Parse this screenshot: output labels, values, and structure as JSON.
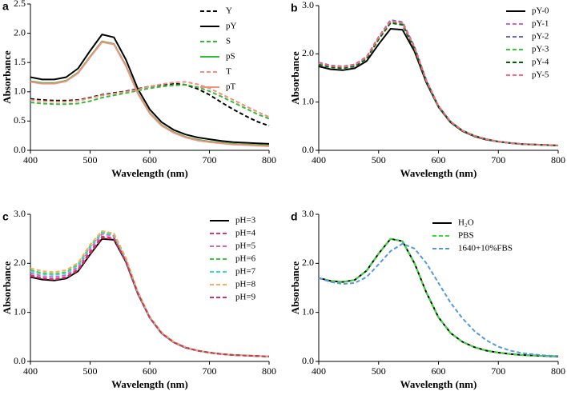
{
  "chart_data": [
    {
      "type": "line",
      "panel": "a",
      "xlabel": "Wavelength (nm)",
      "ylabel": "Absorbance",
      "x": [
        400,
        420,
        440,
        460,
        480,
        500,
        520,
        540,
        560,
        580,
        600,
        620,
        640,
        660,
        680,
        700,
        720,
        740,
        760,
        780,
        800
      ],
      "xlim": [
        400,
        800
      ],
      "xticks": [
        400,
        500,
        600,
        700,
        800
      ],
      "ylim": [
        0,
        2.5
      ],
      "yticks": [
        {
          "value": 0,
          "label": "0.0"
        },
        0.5,
        {
          "value": 1,
          "label": "1.0"
        },
        1.5,
        {
          "value": 2,
          "label": "2.0"
        },
        2.5
      ],
      "series": [
        {
          "name": "Y",
          "color": "#000000",
          "dashed": true,
          "values": [
            0.88,
            0.86,
            0.85,
            0.85,
            0.86,
            0.9,
            0.95,
            0.98,
            1.01,
            1.05,
            1.09,
            1.12,
            1.14,
            1.12,
            1.05,
            0.95,
            0.82,
            0.7,
            0.59,
            0.49,
            0.42
          ]
        },
        {
          "name": "pY",
          "color": "#000000",
          "dashed": false,
          "values": [
            1.25,
            1.21,
            1.21,
            1.25,
            1.4,
            1.7,
            1.98,
            1.93,
            1.55,
            1.05,
            0.7,
            0.48,
            0.35,
            0.27,
            0.22,
            0.19,
            0.16,
            0.14,
            0.13,
            0.12,
            0.11
          ]
        },
        {
          "name": "S",
          "color": "#33bb33",
          "dashed": true,
          "values": [
            0.82,
            0.8,
            0.79,
            0.79,
            0.8,
            0.84,
            0.9,
            0.94,
            0.98,
            1.02,
            1.06,
            1.09,
            1.11,
            1.12,
            1.08,
            1.01,
            0.92,
            0.82,
            0.72,
            0.62,
            0.54
          ]
        },
        {
          "name": "pS",
          "color": "#33bb33",
          "dashed": false,
          "values": [
            1.18,
            1.15,
            1.15,
            1.19,
            1.33,
            1.6,
            1.86,
            1.82,
            1.45,
            0.98,
            0.64,
            0.43,
            0.31,
            0.23,
            0.18,
            0.15,
            0.13,
            0.11,
            0.1,
            0.09,
            0.08
          ]
        },
        {
          "name": "T",
          "color": "#f09080",
          "dashed": true,
          "values": [
            0.86,
            0.84,
            0.83,
            0.83,
            0.85,
            0.89,
            0.94,
            0.97,
            1.0,
            1.04,
            1.09,
            1.13,
            1.16,
            1.17,
            1.13,
            1.06,
            0.96,
            0.86,
            0.76,
            0.66,
            0.57
          ]
        },
        {
          "name": "pT",
          "color": "#f09080",
          "dashed": false,
          "values": [
            1.17,
            1.14,
            1.14,
            1.18,
            1.32,
            1.59,
            1.85,
            1.81,
            1.44,
            0.97,
            0.63,
            0.42,
            0.3,
            0.22,
            0.17,
            0.14,
            0.12,
            0.1,
            0.09,
            0.08,
            0.07
          ]
        }
      ]
    },
    {
      "type": "line",
      "panel": "b",
      "xlabel": "Wavelength (nm)",
      "ylabel": "Absorbance",
      "x": [
        400,
        420,
        440,
        460,
        480,
        500,
        520,
        540,
        560,
        580,
        600,
        620,
        640,
        660,
        680,
        700,
        720,
        740,
        760,
        780,
        800
      ],
      "xlim": [
        400,
        800
      ],
      "xticks": [
        400,
        500,
        600,
        700,
        800
      ],
      "ylim": [
        0,
        3
      ],
      "yticks": [
        {
          "value": 0,
          "label": "0.0"
        },
        {
          "value": 1,
          "label": "1.0"
        },
        {
          "value": 2,
          "label": "2.0"
        },
        {
          "value": 3,
          "label": "3.0"
        }
      ],
      "series": [
        {
          "name": "pY-0",
          "color": "#000000",
          "dashed": false,
          "values": [
            1.74,
            1.68,
            1.66,
            1.7,
            1.85,
            2.2,
            2.52,
            2.5,
            2.05,
            1.4,
            0.9,
            0.58,
            0.4,
            0.29,
            0.22,
            0.18,
            0.15,
            0.13,
            0.12,
            0.11,
            0.1
          ]
        },
        {
          "name": "pY-1",
          "color": "#cc66cc",
          "dashed": true,
          "values": [
            1.8,
            1.74,
            1.72,
            1.76,
            1.92,
            2.32,
            2.66,
            2.62,
            2.12,
            1.43,
            0.91,
            0.59,
            0.41,
            0.3,
            0.23,
            0.18,
            0.15,
            0.13,
            0.12,
            0.11,
            0.1
          ]
        },
        {
          "name": "pY-2",
          "color": "#6666cc",
          "dashed": true,
          "values": [
            1.82,
            1.76,
            1.74,
            1.78,
            1.94,
            2.35,
            2.7,
            2.66,
            2.15,
            1.45,
            0.92,
            0.6,
            0.41,
            0.3,
            0.23,
            0.18,
            0.15,
            0.13,
            0.12,
            0.11,
            0.1
          ]
        },
        {
          "name": "pY-3",
          "color": "#33cc33",
          "dashed": true,
          "values": [
            1.79,
            1.73,
            1.71,
            1.75,
            1.91,
            2.31,
            2.65,
            2.61,
            2.11,
            1.43,
            0.91,
            0.59,
            0.41,
            0.3,
            0.23,
            0.18,
            0.15,
            0.13,
            0.12,
            0.11,
            0.1
          ]
        },
        {
          "name": "pY-4",
          "color": "#006600",
          "dashed": true,
          "values": [
            1.78,
            1.72,
            1.7,
            1.74,
            1.9,
            2.3,
            2.64,
            2.6,
            2.1,
            1.42,
            0.91,
            0.59,
            0.41,
            0.3,
            0.23,
            0.18,
            0.15,
            0.13,
            0.12,
            0.11,
            0.1
          ]
        },
        {
          "name": "pY-5",
          "color": "#ff6680",
          "dashed": true,
          "values": [
            1.81,
            1.75,
            1.73,
            1.77,
            1.93,
            2.34,
            2.68,
            2.64,
            2.13,
            1.44,
            0.92,
            0.6,
            0.41,
            0.3,
            0.23,
            0.18,
            0.15,
            0.13,
            0.12,
            0.11,
            0.1
          ]
        }
      ]
    },
    {
      "type": "line",
      "panel": "c",
      "xlabel": "Wavelength (nm)",
      "ylabel": "Absorbance",
      "x": [
        400,
        420,
        440,
        460,
        480,
        500,
        520,
        540,
        560,
        580,
        600,
        620,
        640,
        660,
        680,
        700,
        720,
        740,
        760,
        780,
        800
      ],
      "xlim": [
        400,
        800
      ],
      "xticks": [
        400,
        500,
        600,
        700,
        800
      ],
      "ylim": [
        0,
        3
      ],
      "yticks": [
        {
          "value": 0,
          "label": "0.0"
        },
        {
          "value": 1,
          "label": "1.0"
        },
        {
          "value": 2,
          "label": "2.0"
        },
        {
          "value": 3,
          "label": "3.0"
        }
      ],
      "series": [
        {
          "name": "pH=3",
          "color": "#000000",
          "dashed": false,
          "values": [
            1.72,
            1.67,
            1.65,
            1.69,
            1.84,
            2.18,
            2.5,
            2.48,
            2.03,
            1.38,
            0.89,
            0.57,
            0.39,
            0.28,
            0.22,
            0.18,
            0.15,
            0.13,
            0.12,
            0.11,
            0.1
          ]
        },
        {
          "name": "pH=4",
          "color": "#e0307f",
          "dashed": true,
          "values": [
            1.76,
            1.7,
            1.68,
            1.72,
            1.88,
            2.24,
            2.55,
            2.52,
            2.05,
            1.39,
            0.89,
            0.57,
            0.39,
            0.28,
            0.22,
            0.18,
            0.15,
            0.13,
            0.12,
            0.11,
            0.1
          ]
        },
        {
          "name": "pH=5",
          "color": "#cc66cc",
          "dashed": true,
          "values": [
            1.8,
            1.74,
            1.72,
            1.76,
            1.92,
            2.3,
            2.6,
            2.56,
            2.07,
            1.4,
            0.9,
            0.58,
            0.4,
            0.29,
            0.22,
            0.18,
            0.15,
            0.13,
            0.12,
            0.11,
            0.1
          ]
        },
        {
          "name": "pH=6",
          "color": "#33cc33",
          "dashed": true,
          "values": [
            1.86,
            1.8,
            1.78,
            1.82,
            1.98,
            2.35,
            2.64,
            2.6,
            2.1,
            1.42,
            0.91,
            0.59,
            0.4,
            0.29,
            0.22,
            0.18,
            0.15,
            0.13,
            0.12,
            0.11,
            0.1
          ]
        },
        {
          "name": "pH=7",
          "color": "#33ddcc",
          "dashed": true,
          "values": [
            1.84,
            1.78,
            1.76,
            1.8,
            1.96,
            2.33,
            2.62,
            2.58,
            2.09,
            1.41,
            0.9,
            0.58,
            0.4,
            0.29,
            0.22,
            0.18,
            0.15,
            0.13,
            0.12,
            0.11,
            0.1
          ]
        },
        {
          "name": "pH=8",
          "color": "#ffaa55",
          "dashed": true,
          "values": [
            1.9,
            1.84,
            1.82,
            1.86,
            2.01,
            2.38,
            2.66,
            2.61,
            2.11,
            1.42,
            0.91,
            0.59,
            0.4,
            0.29,
            0.22,
            0.18,
            0.15,
            0.13,
            0.12,
            0.11,
            0.1
          ]
        },
        {
          "name": "pH=9",
          "color": "#cc3366",
          "dashed": true,
          "values": [
            1.74,
            1.69,
            1.67,
            1.71,
            1.86,
            2.2,
            2.52,
            2.5,
            2.04,
            1.39,
            0.89,
            0.57,
            0.39,
            0.28,
            0.22,
            0.18,
            0.15,
            0.13,
            0.12,
            0.11,
            0.1
          ]
        }
      ]
    },
    {
      "type": "line",
      "panel": "d",
      "xlabel": "Wavelength (nm)",
      "ylabel": "Absorbance",
      "x": [
        400,
        420,
        440,
        460,
        480,
        500,
        520,
        540,
        560,
        580,
        600,
        620,
        640,
        660,
        680,
        700,
        720,
        740,
        760,
        780,
        800
      ],
      "xlim": [
        400,
        800
      ],
      "xticks": [
        400,
        500,
        600,
        700,
        800
      ],
      "ylim": [
        0,
        3
      ],
      "yticks": [
        {
          "value": 0,
          "label": "0.0"
        },
        {
          "value": 1,
          "label": "1.0"
        },
        {
          "value": 2,
          "label": "2.0"
        },
        {
          "value": 3,
          "label": "3.0"
        }
      ],
      "series": [
        {
          "name": "H₂O",
          "color": "#000000",
          "dashed": false,
          "values": [
            1.7,
            1.64,
            1.62,
            1.66,
            1.85,
            2.2,
            2.5,
            2.45,
            2.0,
            1.4,
            0.9,
            0.58,
            0.4,
            0.29,
            0.22,
            0.18,
            0.15,
            0.13,
            0.12,
            0.11,
            0.1
          ]
        },
        {
          "name": "PBS",
          "color": "#33dd33",
          "dashed": true,
          "values": [
            1.7,
            1.64,
            1.62,
            1.66,
            1.85,
            2.2,
            2.5,
            2.45,
            2.0,
            1.4,
            0.9,
            0.58,
            0.4,
            0.29,
            0.22,
            0.18,
            0.15,
            0.13,
            0.12,
            0.11,
            0.1
          ]
        },
        {
          "name": "1640+10%FBS",
          "color": "#5599dd",
          "dashed": true,
          "values": [
            1.7,
            1.62,
            1.58,
            1.6,
            1.72,
            1.98,
            2.25,
            2.4,
            2.3,
            2.0,
            1.6,
            1.2,
            0.88,
            0.62,
            0.43,
            0.3,
            0.22,
            0.17,
            0.14,
            0.12,
            0.11
          ]
        }
      ]
    }
  ]
}
